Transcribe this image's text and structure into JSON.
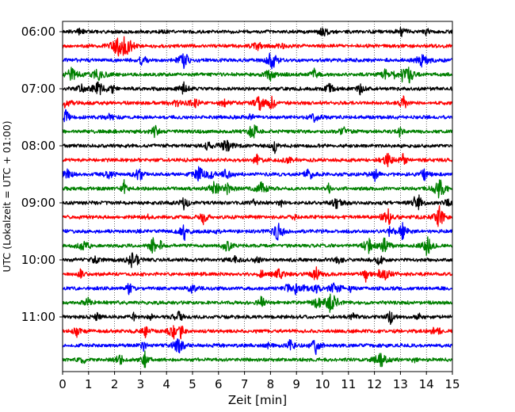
{
  "chart_data": {
    "type": "line",
    "title": "",
    "xlabel": "Zeit  [min]",
    "ylabel": "UTC (Lokalzeit = UTC + 01:00)",
    "xlim": [
      0,
      15
    ],
    "x_ticks": [
      "0",
      "1",
      "2",
      "3",
      "4",
      "5",
      "6",
      "7",
      "8",
      "9",
      "10",
      "11",
      "12",
      "13",
      "14",
      "15"
    ],
    "y_ticks": [
      "06:00",
      "07:00",
      "08:00",
      "09:00",
      "10:00",
      "11:00"
    ],
    "trace_interval_min": 15,
    "trace_start": "06:00",
    "trace_count": 24,
    "trace_colors": [
      "#000000",
      "#ff0000",
      "#0000ff",
      "#008000"
    ],
    "x_grid": "dotted",
    "y_grid": false,
    "legend": "none"
  }
}
